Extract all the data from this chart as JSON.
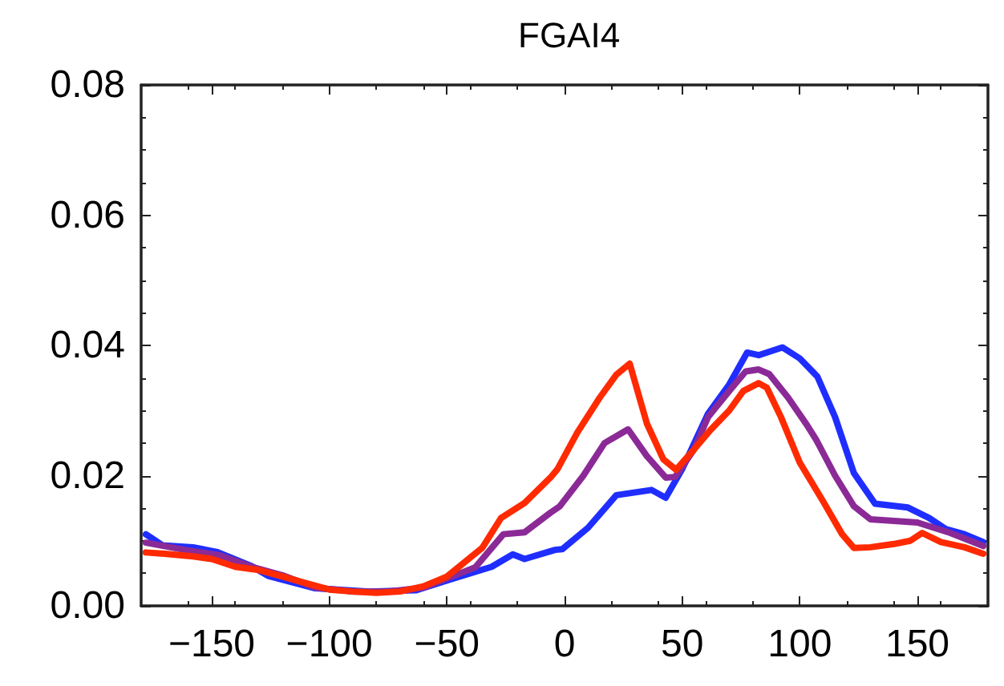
{
  "chart_data": {
    "type": "line",
    "title": "FGAI4",
    "xlim": [
      -180,
      180
    ],
    "xticks": [
      {
        "value": -150,
        "label": "−150"
      },
      {
        "value": -100,
        "label": "−100"
      },
      {
        "value": -50,
        "label": "−50"
      },
      0,
      50,
      100,
      150
    ],
    "ylim": [
      0,
      0.08
    ],
    "yticks": [
      {
        "value": 0,
        "label": "0.00"
      },
      {
        "value": 0.02,
        "label": "0.02"
      },
      {
        "value": 0.04,
        "label": "0.04"
      },
      {
        "value": 0.06,
        "label": "0.06"
      },
      {
        "value": 0.08,
        "label": "0.08"
      }
    ],
    "grid": false,
    "marker": "none",
    "line_style": "solid",
    "series": [
      {
        "color": "#1f2eff",
        "x": [
          -178,
          -171,
          -158,
          -148,
          -133,
          -126,
          -106,
          -83,
          -63,
          -49,
          -31,
          -22,
          -17,
          -4,
          -1,
          10,
          22,
          37,
          43,
          50,
          61,
          70,
          77.6,
          82.5,
          92.6,
          100,
          107.5,
          115,
          123,
          132,
          146,
          155,
          162,
          170,
          178
        ],
        "values": [
          0.011,
          0.0093,
          0.009,
          0.0083,
          0.0061,
          0.0046,
          0.0027,
          0.0022,
          0.0024,
          0.004,
          0.006,
          0.0079,
          0.0072,
          0.0086,
          0.0087,
          0.012,
          0.017,
          0.0178,
          0.0166,
          0.021,
          0.0295,
          0.034,
          0.0389,
          0.0385,
          0.0397,
          0.038,
          0.0352,
          0.029,
          0.0204,
          0.0157,
          0.0151,
          0.0135,
          0.0118,
          0.011,
          0.0098
        ]
      },
      {
        "color": "#8b2a96",
        "x": [
          -178,
          -160,
          -147,
          -133,
          -120,
          -106,
          -90,
          -75,
          -60,
          -50,
          -38,
          -26,
          -17,
          -6,
          -2,
          8,
          17,
          27,
          35,
          43,
          47,
          55,
          61,
          70,
          77,
          82.5,
          87,
          95,
          103,
          107,
          115,
          123,
          130,
          150,
          164,
          178
        ],
        "values": [
          0.0097,
          0.0085,
          0.0078,
          0.006,
          0.0047,
          0.0028,
          0.0022,
          0.0022,
          0.0028,
          0.0042,
          0.0059,
          0.011,
          0.0113,
          0.0143,
          0.0153,
          0.02,
          0.025,
          0.0271,
          0.023,
          0.0197,
          0.0198,
          0.024,
          0.029,
          0.033,
          0.036,
          0.0363,
          0.0356,
          0.032,
          0.0278,
          0.0255,
          0.02,
          0.0153,
          0.0133,
          0.0128,
          0.0112,
          0.0092
        ]
      },
      {
        "color": "#ff2a00",
        "x": [
          -178,
          -170,
          -158,
          -150,
          -140,
          -130,
          -120,
          -110,
          -100,
          -90,
          -80,
          -70,
          -60,
          -50,
          -35,
          -27,
          -17,
          -6,
          -3,
          5.4,
          15,
          22,
          27.7,
          35,
          42,
          47.4,
          55,
          62,
          70,
          76,
          82.5,
          86,
          92,
          100,
          110,
          118,
          123,
          130,
          140,
          147,
          152,
          160,
          170,
          178
        ],
        "values": [
          0.0082,
          0.008,
          0.0076,
          0.0072,
          0.006,
          0.0055,
          0.0045,
          0.0035,
          0.0025,
          0.0022,
          0.002,
          0.0022,
          0.003,
          0.0045,
          0.0089,
          0.0135,
          0.0158,
          0.0197,
          0.021,
          0.0266,
          0.032,
          0.0355,
          0.0372,
          0.028,
          0.0225,
          0.0209,
          0.024,
          0.027,
          0.03,
          0.033,
          0.0342,
          0.0335,
          0.029,
          0.022,
          0.016,
          0.011,
          0.0089,
          0.009,
          0.0095,
          0.01,
          0.0112,
          0.0098,
          0.009,
          0.008
        ]
      }
    ]
  }
}
